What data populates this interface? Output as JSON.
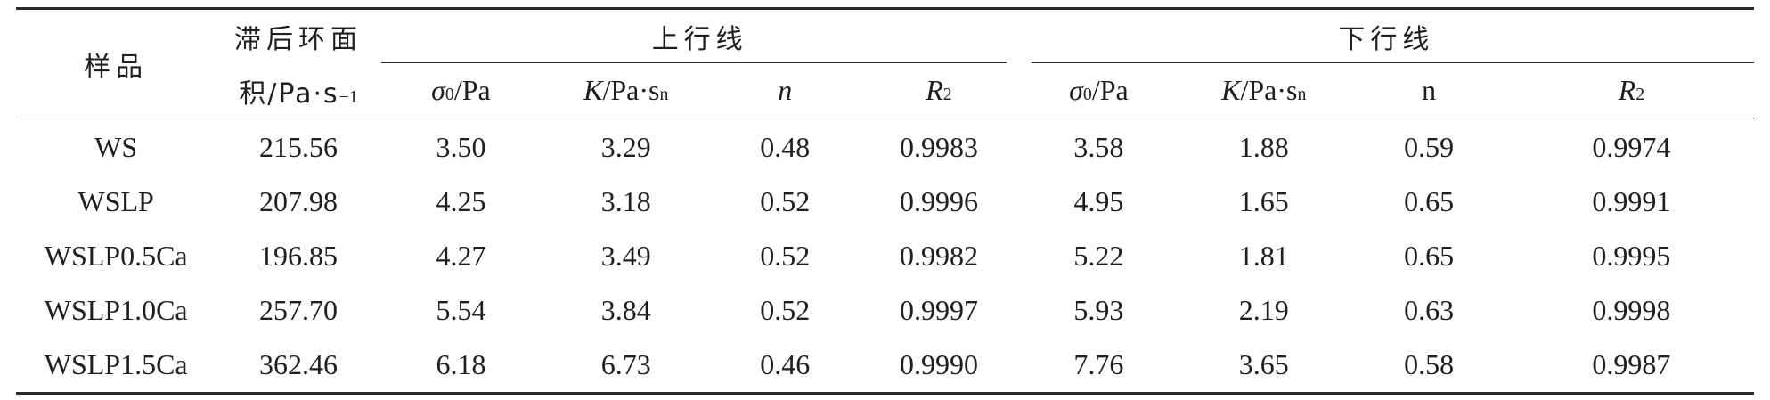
{
  "header": {
    "sample": "样品",
    "hysteresis_line1": "滞后环面",
    "hysteresis_line2": "积/Pa·s",
    "hysteresis_sup": "−1",
    "up_curve": "上行线",
    "down_curve": "下行线",
    "sigma_symbol": "σ",
    "sigma_sub": "0",
    "sigma_unit": "/Pa",
    "k_symbol": "K",
    "k_unit": "/Pa·s",
    "k_sup": "n",
    "n_italic": "n",
    "n_plain": "n",
    "r_symbol": "R",
    "r_sup": "2"
  },
  "rows": [
    {
      "sample": "WS",
      "area": "215.56",
      "up_sigma": "3.50",
      "up_k": "3.29",
      "up_n": "0.48",
      "up_r2": "0.9983",
      "down_sigma": "3.58",
      "down_k": "1.88",
      "down_n": "0.59",
      "down_r2": "0.9974"
    },
    {
      "sample": "WSLP",
      "area": "207.98",
      "up_sigma": "4.25",
      "up_k": "3.18",
      "up_n": "0.52",
      "up_r2": "0.9996",
      "down_sigma": "4.95",
      "down_k": "1.65",
      "down_n": "0.65",
      "down_r2": "0.9991"
    },
    {
      "sample": "WSLP0.5Ca",
      "area": "196.85",
      "up_sigma": "4.27",
      "up_k": "3.49",
      "up_n": "0.52",
      "up_r2": "0.9982",
      "down_sigma": "5.22",
      "down_k": "1.81",
      "down_n": "0.65",
      "down_r2": "0.9995"
    },
    {
      "sample": "WSLP1.0Ca",
      "area": "257.70",
      "up_sigma": "5.54",
      "up_k": "3.84",
      "up_n": "0.52",
      "up_r2": "0.9997",
      "down_sigma": "5.93",
      "down_k": "2.19",
      "down_n": "0.63",
      "down_r2": "0.9998"
    },
    {
      "sample": "WSLP1.5Ca",
      "area": "362.46",
      "up_sigma": "6.18",
      "up_k": "6.73",
      "up_n": "0.46",
      "up_r2": "0.9990",
      "down_sigma": "7.76",
      "down_k": "3.65",
      "down_n": "0.58",
      "down_r2": "0.9987"
    }
  ]
}
